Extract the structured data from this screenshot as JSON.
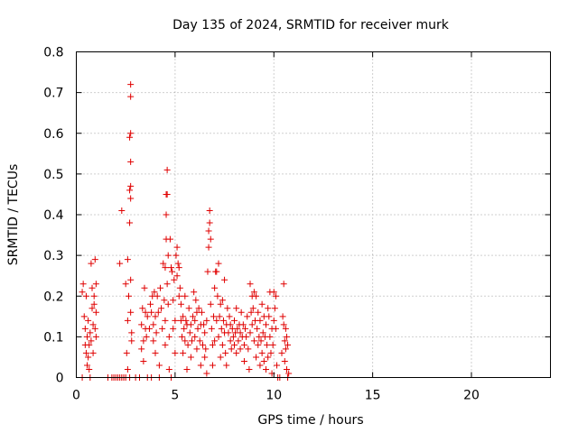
{
  "chart_data": {
    "type": "scatter",
    "title": "Day 135 of 2024, SRMTID for receiver murk",
    "xlabel": "GPS time / hours",
    "ylabel": "SRMTID / TECUs",
    "xlim": [
      0,
      24
    ],
    "ylim": [
      0,
      0.8
    ],
    "x_ticks": [
      "0",
      "5",
      "10",
      "15",
      "20"
    ],
    "y_ticks": [
      "0",
      "0.1",
      "0.2",
      "0.3",
      "0.4",
      "0.5",
      "0.6",
      "0.7",
      "0.8"
    ],
    "grid": true,
    "marker": "+",
    "point_color": "#e00000",
    "series": [
      {
        "points": [
          [
            0.3,
            0.0
          ],
          [
            0.3,
            0.21
          ],
          [
            0.35,
            0.23
          ],
          [
            0.4,
            0.15
          ],
          [
            0.45,
            0.12
          ],
          [
            0.45,
            0.08
          ],
          [
            0.5,
            0.2
          ],
          [
            0.5,
            0.06
          ],
          [
            0.55,
            0.1
          ],
          [
            0.55,
            0.03
          ],
          [
            0.6,
            0.14
          ],
          [
            0.6,
            0.05
          ],
          [
            0.65,
            0.08
          ],
          [
            0.65,
            0.02
          ],
          [
            0.7,
            0.11
          ],
          [
            0.7,
            0.0
          ],
          [
            0.75,
            0.09
          ],
          [
            0.75,
            0.28
          ],
          [
            0.8,
            0.17
          ],
          [
            0.8,
            0.22
          ],
          [
            0.85,
            0.13
          ],
          [
            0.85,
            0.06
          ],
          [
            0.9,
            0.2
          ],
          [
            0.9,
            0.18
          ],
          [
            0.95,
            0.29
          ],
          [
            0.95,
            0.12
          ],
          [
            1.0,
            0.23
          ],
          [
            1.0,
            0.16
          ],
          [
            1.0,
            0.1
          ],
          [
            1.6,
            0.0
          ],
          [
            1.8,
            0.0
          ],
          [
            1.9,
            0.0
          ],
          [
            2.0,
            0.0
          ],
          [
            2.1,
            0.0
          ],
          [
            2.2,
            0.0
          ],
          [
            2.2,
            0.28
          ],
          [
            2.3,
            0.41
          ],
          [
            2.3,
            0.0
          ],
          [
            2.4,
            0.0
          ],
          [
            2.5,
            0.0
          ],
          [
            2.5,
            0.23
          ],
          [
            2.55,
            0.06
          ],
          [
            2.6,
            0.14
          ],
          [
            2.6,
            0.29
          ],
          [
            2.6,
            0.02
          ],
          [
            2.65,
            0.2
          ],
          [
            2.7,
            0.59
          ],
          [
            2.7,
            0.46
          ],
          [
            2.7,
            0.38
          ],
          [
            2.7,
            0.0
          ],
          [
            2.75,
            0.72
          ],
          [
            2.75,
            0.69
          ],
          [
            2.75,
            0.6
          ],
          [
            2.75,
            0.53
          ],
          [
            2.75,
            0.47
          ],
          [
            2.75,
            0.44
          ],
          [
            2.75,
            0.24
          ],
          [
            2.75,
            0.16
          ],
          [
            2.8,
            0.11
          ],
          [
            2.8,
            0.09
          ],
          [
            3.0,
            0.0
          ],
          [
            3.2,
            0.0
          ],
          [
            3.3,
            0.13
          ],
          [
            3.3,
            0.07
          ],
          [
            3.35,
            0.17
          ],
          [
            3.4,
            0.04
          ],
          [
            3.4,
            0.09
          ],
          [
            3.45,
            0.22
          ],
          [
            3.5,
            0.16
          ],
          [
            3.5,
            0.12
          ],
          [
            3.55,
            0.1
          ],
          [
            3.6,
            0.15
          ],
          [
            3.6,
            0.0
          ],
          [
            3.7,
            0.12
          ],
          [
            3.75,
            0.18
          ],
          [
            3.8,
            0.16
          ],
          [
            3.8,
            0.0
          ],
          [
            3.85,
            0.2
          ],
          [
            3.9,
            0.13
          ],
          [
            3.9,
            0.09
          ],
          [
            3.95,
            0.21
          ],
          [
            4.0,
            0.15
          ],
          [
            4.0,
            0.06
          ],
          [
            4.05,
            0.11
          ],
          [
            4.1,
            0.2
          ],
          [
            4.15,
            0.16
          ],
          [
            4.2,
            0.03
          ],
          [
            4.2,
            0.0
          ],
          [
            4.25,
            0.22
          ],
          [
            4.3,
            0.17
          ],
          [
            4.35,
            0.12
          ],
          [
            4.4,
            0.28
          ],
          [
            4.45,
            0.19
          ],
          [
            4.5,
            0.27
          ],
          [
            4.5,
            0.14
          ],
          [
            4.5,
            0.08
          ],
          [
            4.55,
            0.45
          ],
          [
            4.55,
            0.4
          ],
          [
            4.55,
            0.34
          ],
          [
            4.6,
            0.51
          ],
          [
            4.6,
            0.45
          ],
          [
            4.6,
            0.23
          ],
          [
            4.65,
            0.3
          ],
          [
            4.65,
            0.18
          ],
          [
            4.7,
            0.1
          ],
          [
            4.7,
            0.02
          ],
          [
            4.75,
            0.34
          ],
          [
            4.8,
            0.27
          ],
          [
            4.8,
            0.0
          ],
          [
            4.85,
            0.26
          ],
          [
            4.9,
            0.19
          ],
          [
            4.9,
            0.12
          ],
          [
            4.95,
            0.24
          ],
          [
            5.0,
            0.14
          ],
          [
            5.0,
            0.06
          ],
          [
            5.05,
            0.3
          ],
          [
            5.1,
            0.32
          ],
          [
            5.1,
            0.25
          ],
          [
            5.15,
            0.28
          ],
          [
            5.2,
            0.27
          ],
          [
            5.2,
            0.2
          ],
          [
            5.25,
            0.22
          ],
          [
            5.3,
            0.18
          ],
          [
            5.3,
            0.14
          ],
          [
            5.35,
            0.1
          ],
          [
            5.4,
            0.15
          ],
          [
            5.4,
            0.06
          ],
          [
            5.45,
            0.12
          ],
          [
            5.5,
            0.2
          ],
          [
            5.5,
            0.09
          ],
          [
            5.55,
            0.14
          ],
          [
            5.6,
            0.13
          ],
          [
            5.6,
            0.02
          ],
          [
            5.65,
            0.08
          ],
          [
            5.7,
            0.17
          ],
          [
            5.75,
            0.11
          ],
          [
            5.8,
            0.13
          ],
          [
            5.8,
            0.05
          ],
          [
            5.85,
            0.09
          ],
          [
            5.9,
            0.15
          ],
          [
            5.95,
            0.21
          ],
          [
            6.0,
            0.14
          ],
          [
            6.0,
            0.1
          ],
          [
            6.05,
            0.19
          ],
          [
            6.1,
            0.16
          ],
          [
            6.1,
            0.07
          ],
          [
            6.15,
            0.12
          ],
          [
            6.2,
            0.17
          ],
          [
            6.25,
            0.09
          ],
          [
            6.3,
            0.13
          ],
          [
            6.3,
            0.03
          ],
          [
            6.35,
            0.16
          ],
          [
            6.4,
            0.08
          ],
          [
            6.45,
            0.13
          ],
          [
            6.5,
            0.11
          ],
          [
            6.5,
            0.05
          ],
          [
            6.55,
            0.07
          ],
          [
            6.6,
            0.14
          ],
          [
            6.6,
            0.01
          ],
          [
            6.65,
            0.26
          ],
          [
            6.7,
            0.32
          ],
          [
            6.7,
            0.36
          ],
          [
            6.75,
            0.41
          ],
          [
            6.75,
            0.38
          ],
          [
            6.8,
            0.34
          ],
          [
            6.8,
            0.18
          ],
          [
            6.85,
            0.12
          ],
          [
            6.9,
            0.08
          ],
          [
            6.9,
            0.03
          ],
          [
            6.95,
            0.15
          ],
          [
            7.0,
            0.22
          ],
          [
            7.0,
            0.09
          ],
          [
            7.05,
            0.26
          ],
          [
            7.1,
            0.26
          ],
          [
            7.1,
            0.14
          ],
          [
            7.15,
            0.2
          ],
          [
            7.2,
            0.28
          ],
          [
            7.2,
            0.1
          ],
          [
            7.25,
            0.15
          ],
          [
            7.3,
            0.18
          ],
          [
            7.3,
            0.05
          ],
          [
            7.35,
            0.12
          ],
          [
            7.4,
            0.19
          ],
          [
            7.4,
            0.08
          ],
          [
            7.45,
            0.14
          ],
          [
            7.5,
            0.24
          ],
          [
            7.5,
            0.11
          ],
          [
            7.55,
            0.06
          ],
          [
            7.6,
            0.13
          ],
          [
            7.6,
            0.03
          ],
          [
            7.65,
            0.17
          ],
          [
            7.7,
            0.11
          ],
          [
            7.75,
            0.15
          ],
          [
            7.8,
            0.09
          ],
          [
            7.8,
            0.13
          ],
          [
            7.85,
            0.07
          ],
          [
            7.9,
            0.12
          ],
          [
            7.95,
            0.1
          ],
          [
            8.0,
            0.14
          ],
          [
            8.0,
            0.08
          ],
          [
            8.05,
            0.11
          ],
          [
            8.1,
            0.17
          ],
          [
            8.1,
            0.06
          ],
          [
            8.15,
            0.12
          ],
          [
            8.2,
            0.09
          ],
          [
            8.25,
            0.13
          ],
          [
            8.3,
            0.07
          ],
          [
            8.3,
            0.11
          ],
          [
            8.35,
            0.16
          ],
          [
            8.4,
            0.1
          ],
          [
            8.45,
            0.13
          ],
          [
            8.5,
            0.08
          ],
          [
            8.5,
            0.04
          ],
          [
            8.55,
            0.12
          ],
          [
            8.6,
            0.1
          ],
          [
            8.65,
            0.15
          ],
          [
            8.7,
            0.07
          ],
          [
            8.75,
            0.02
          ],
          [
            8.8,
            0.11
          ],
          [
            8.8,
            0.23
          ],
          [
            8.85,
            0.16
          ],
          [
            8.9,
            0.2
          ],
          [
            8.9,
            0.13
          ],
          [
            8.95,
            0.17
          ],
          [
            9.0,
            0.21
          ],
          [
            9.0,
            0.09
          ],
          [
            9.05,
            0.14
          ],
          [
            9.1,
            0.2
          ],
          [
            9.1,
            0.05
          ],
          [
            9.15,
            0.12
          ],
          [
            9.2,
            0.16
          ],
          [
            9.2,
            0.08
          ],
          [
            9.25,
            0.1
          ],
          [
            9.3,
            0.14
          ],
          [
            9.3,
            0.03
          ],
          [
            9.35,
            0.09
          ],
          [
            9.4,
            0.18
          ],
          [
            9.4,
            0.06
          ],
          [
            9.45,
            0.11
          ],
          [
            9.5,
            0.15
          ],
          [
            9.5,
            0.04
          ],
          [
            9.55,
            0.1
          ],
          [
            9.6,
            0.13
          ],
          [
            9.6,
            0.02
          ],
          [
            9.65,
            0.08
          ],
          [
            9.7,
            0.17
          ],
          [
            9.7,
            0.05
          ],
          [
            9.75,
            0.15
          ],
          [
            9.8,
            0.21
          ],
          [
            9.8,
            0.1
          ],
          [
            9.85,
            0.06
          ],
          [
            9.9,
            0.12
          ],
          [
            9.9,
            0.01
          ],
          [
            9.95,
            0.08
          ],
          [
            10.0,
            0.14
          ],
          [
            10.0,
            0.21
          ],
          [
            10.05,
            0.17
          ],
          [
            10.1,
            0.12
          ],
          [
            10.1,
            0.2
          ],
          [
            10.15,
            0.03
          ],
          [
            10.2,
            0.0
          ],
          [
            10.3,
            0.0
          ],
          [
            10.4,
            0.06
          ],
          [
            10.45,
            0.15
          ],
          [
            10.5,
            0.23
          ],
          [
            10.5,
            0.13
          ],
          [
            10.55,
            0.09
          ],
          [
            10.55,
            0.04
          ],
          [
            10.6,
            0.12
          ],
          [
            10.6,
            0.07
          ],
          [
            10.65,
            0.1
          ],
          [
            10.65,
            0.02
          ],
          [
            10.7,
            0.08
          ],
          [
            10.7,
            0.0
          ],
          [
            10.75,
            0.01
          ]
        ]
      }
    ]
  }
}
